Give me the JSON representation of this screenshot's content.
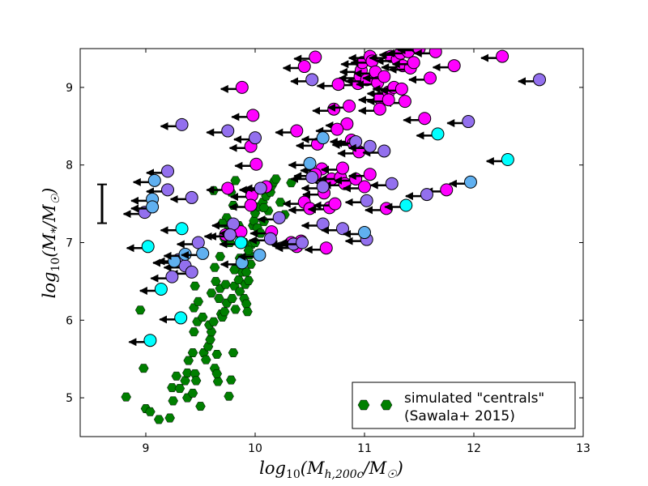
{
  "chart_data": {
    "type": "scatter",
    "title": "",
    "xlabel": "log10(Mh,200c / M☉)",
    "ylabel": "log10(M* / M☉)",
    "xlim": [
      8.4,
      13
    ],
    "ylim": [
      4.5,
      9.5
    ],
    "xticks": [
      9,
      10,
      11,
      12,
      13
    ],
    "yticks": [
      5,
      6,
      7,
      8,
      9
    ],
    "xtick_labels": [
      "9",
      "10",
      "11",
      "12",
      "13"
    ],
    "ytick_labels": [
      "5",
      "6",
      "7",
      "8",
      "9"
    ],
    "grid": false,
    "legend": {
      "location": "bottom-right",
      "entries": [
        {
          "label_line1": "simulated \"centrals\"",
          "label_line2": "(Sawala+ 2015)",
          "color": "#007f00",
          "marker": "hexagon"
        }
      ]
    },
    "error_bar": {
      "x": 8.6,
      "y_low": 7.25,
      "y_high": 7.75,
      "note": "typical stellar mass uncertainty"
    },
    "colors": {
      "magenta": "#ff00ff",
      "purple": "#9370ee",
      "blue": "#60b0f0",
      "cyan": "#00ffff",
      "green": "#007f00",
      "arrow": "#000000"
    },
    "series": [
      {
        "name": "simulated \"centrals\" (Sawala+ 2015)",
        "color": "#007f00",
        "marker": "hexagon",
        "points": [
          [
            8.82,
            5.01
          ],
          [
            8.95,
            6.13
          ],
          [
            8.98,
            5.38
          ],
          [
            9.0,
            4.86
          ],
          [
            9.04,
            4.82
          ],
          [
            9.12,
            4.72
          ],
          [
            9.22,
            4.74
          ],
          [
            9.25,
            4.96
          ],
          [
            9.24,
            5.13
          ],
          [
            9.28,
            5.28
          ],
          [
            9.31,
            5.12
          ],
          [
            9.36,
            5.22
          ],
          [
            9.38,
            5.32
          ],
          [
            9.39,
            5.48
          ],
          [
            9.38,
            5.0
          ],
          [
            9.43,
            5.06
          ],
          [
            9.45,
            5.31
          ],
          [
            9.46,
            5.22
          ],
          [
            9.43,
            5.58
          ],
          [
            9.44,
            5.85
          ],
          [
            9.47,
            5.98
          ],
          [
            9.44,
            6.16
          ],
          [
            9.48,
            6.24
          ],
          [
            9.45,
            6.44
          ],
          [
            9.5,
            4.89
          ],
          [
            9.52,
            6.04
          ],
          [
            9.53,
            5.58
          ],
          [
            9.55,
            5.49
          ],
          [
            9.57,
            5.66
          ],
          [
            9.59,
            5.75
          ],
          [
            9.6,
            5.85
          ],
          [
            9.58,
            5.94
          ],
          [
            9.62,
            5.98
          ],
          [
            9.6,
            6.35
          ],
          [
            9.63,
            5.38
          ],
          [
            9.65,
            5.56
          ],
          [
            9.66,
            5.21
          ],
          [
            9.65,
            5.31
          ],
          [
            9.67,
            6.28
          ],
          [
            9.68,
            6.41
          ],
          [
            9.69,
            6.08
          ],
          [
            9.7,
            6.04
          ],
          [
            9.72,
            6.11
          ],
          [
            9.74,
            6.22
          ],
          [
            9.73,
            6.46
          ],
          [
            9.76,
            5.02
          ],
          [
            9.78,
            5.23
          ],
          [
            9.8,
            5.58
          ],
          [
            9.79,
            6.28
          ],
          [
            9.81,
            6.44
          ],
          [
            9.82,
            6.14
          ],
          [
            9.85,
            6.52
          ],
          [
            9.86,
            6.37
          ],
          [
            9.88,
            6.62
          ],
          [
            9.9,
            6.28
          ],
          [
            9.91,
            6.46
          ],
          [
            9.92,
            6.21
          ],
          [
            9.93,
            6.11
          ],
          [
            9.94,
            6.51
          ],
          [
            9.95,
            6.84
          ],
          [
            9.96,
            6.72
          ],
          [
            9.97,
            6.98
          ],
          [
            9.98,
            7.22
          ],
          [
            9.99,
            7.28
          ],
          [
            10.0,
            7.38
          ],
          [
            10.02,
            7.19
          ],
          [
            10.04,
            7.46
          ],
          [
            10.05,
            7.12
          ],
          [
            10.07,
            7.52
          ],
          [
            10.08,
            7.27
          ],
          [
            10.1,
            7.6
          ],
          [
            10.12,
            7.41
          ],
          [
            10.14,
            7.65
          ],
          [
            10.15,
            7.73
          ],
          [
            10.17,
            7.78
          ],
          [
            10.19,
            7.82
          ],
          [
            10.23,
            7.52
          ],
          [
            10.27,
            7.36
          ],
          [
            10.33,
            7.77
          ],
          [
            9.82,
            7.8
          ],
          [
            9.78,
            7.65
          ],
          [
            9.62,
            7.67
          ],
          [
            9.8,
            7.48
          ],
          [
            9.74,
            7.32
          ],
          [
            9.7,
            7.25
          ],
          [
            9.72,
            7.05
          ],
          [
            9.68,
            6.82
          ],
          [
            9.63,
            6.68
          ],
          [
            9.85,
            7.22
          ],
          [
            9.9,
            7.0
          ],
          [
            10.0,
            7.0
          ],
          [
            10.08,
            7.45
          ],
          [
            9.94,
            6.9
          ],
          [
            9.86,
            7.1
          ],
          [
            9.77,
            7.0
          ],
          [
            9.75,
            7.15
          ],
          [
            9.86,
            6.8
          ],
          [
            9.81,
            6.65
          ],
          [
            9.92,
            6.62
          ],
          [
            9.64,
            6.5
          ]
        ]
      },
      {
        "name": "observed (magenta)",
        "color": "#ff00ff",
        "marker": "circle",
        "arrows": true,
        "points": [
          [
            9.88,
            9.0
          ],
          [
            9.98,
            8.64
          ],
          [
            9.96,
            8.24
          ],
          [
            10.01,
            8.01
          ],
          [
            9.97,
            7.61
          ],
          [
            9.96,
            7.48
          ],
          [
            9.75,
            7.7
          ],
          [
            9.73,
            7.1
          ],
          [
            9.87,
            7.14
          ],
          [
            10.1,
            7.72
          ],
          [
            10.15,
            7.14
          ],
          [
            10.38,
            8.44
          ],
          [
            10.33,
            7.0
          ],
          [
            10.38,
            6.95
          ],
          [
            10.42,
            7.02
          ],
          [
            10.45,
            7.52
          ],
          [
            10.5,
            7.44
          ],
          [
            10.57,
            8.27
          ],
          [
            10.61,
            7.95
          ],
          [
            10.63,
            7.64
          ],
          [
            10.65,
            6.93
          ],
          [
            10.68,
            7.45
          ],
          [
            10.55,
            7.88
          ],
          [
            10.7,
            7.82
          ],
          [
            10.72,
            8.72
          ],
          [
            10.73,
            7.5
          ],
          [
            10.78,
            7.84
          ],
          [
            10.8,
            7.96
          ],
          [
            10.82,
            7.76
          ],
          [
            10.84,
            8.53
          ],
          [
            10.86,
            8.76
          ],
          [
            10.75,
            8.46
          ],
          [
            10.88,
            8.32
          ],
          [
            10.9,
            8.28
          ],
          [
            10.92,
            7.82
          ],
          [
            10.94,
            9.05
          ],
          [
            10.96,
            9.14
          ],
          [
            10.97,
            9.22
          ],
          [
            10.98,
            9.32
          ],
          [
            11.0,
            7.72
          ],
          [
            11.02,
            9.1
          ],
          [
            11.05,
            9.4
          ],
          [
            11.07,
            9.34
          ],
          [
            11.1,
            9.2
          ],
          [
            11.12,
            9.06
          ],
          [
            11.14,
            8.86
          ],
          [
            11.18,
            9.14
          ],
          [
            11.2,
            7.44
          ],
          [
            11.22,
            8.94
          ],
          [
            11.24,
            9.4
          ],
          [
            11.27,
            9.0
          ],
          [
            11.3,
            9.36
          ],
          [
            11.33,
            9.44
          ],
          [
            11.35,
            9.28
          ],
          [
            11.37,
            8.82
          ],
          [
            11.4,
            9.46
          ],
          [
            11.42,
            9.25
          ],
          [
            11.45,
            9.32
          ],
          [
            11.48,
            9.52
          ],
          [
            11.5,
            9.5
          ],
          [
            11.55,
            8.6
          ],
          [
            11.6,
            9.12
          ],
          [
            11.65,
            9.46
          ],
          [
            11.75,
            7.68
          ],
          [
            11.82,
            9.28
          ],
          [
            12.26,
            9.4
          ],
          [
            10.55,
            9.39
          ],
          [
            10.45,
            9.27
          ],
          [
            10.76,
            9.04
          ],
          [
            11.14,
            8.72
          ],
          [
            10.95,
            8.17
          ],
          [
            11.05,
            7.88
          ],
          [
            11.22,
            8.84
          ],
          [
            11.34,
            8.98
          ]
        ]
      },
      {
        "name": "observed (purple)",
        "color": "#9370ee",
        "marker": "circle",
        "arrows": true,
        "points": [
          [
            9.33,
            8.52
          ],
          [
            9.2,
            7.92
          ],
          [
            9.2,
            7.68
          ],
          [
            9.42,
            7.58
          ],
          [
            8.99,
            7.39
          ],
          [
            9.75,
            8.44
          ],
          [
            10.0,
            8.35
          ],
          [
            10.05,
            7.7
          ],
          [
            9.8,
            7.24
          ],
          [
            9.77,
            7.1
          ],
          [
            9.48,
            7.0
          ],
          [
            9.3,
            6.78
          ],
          [
            9.36,
            6.7
          ],
          [
            9.42,
            6.62
          ],
          [
            9.24,
            6.56
          ],
          [
            10.14,
            7.05
          ],
          [
            10.22,
            7.32
          ],
          [
            10.35,
            6.98
          ],
          [
            10.43,
            7.0
          ],
          [
            10.52,
            7.84
          ],
          [
            10.62,
            7.24
          ],
          [
            10.8,
            7.18
          ],
          [
            11.02,
            7.04
          ],
          [
            11.02,
            7.54
          ],
          [
            11.18,
            8.18
          ],
          [
            11.25,
            7.76
          ],
          [
            11.57,
            7.62
          ],
          [
            11.95,
            8.56
          ],
          [
            12.6,
            9.1
          ],
          [
            10.52,
            9.1
          ],
          [
            10.92,
            8.3
          ],
          [
            11.05,
            8.24
          ],
          [
            10.62,
            7.72
          ]
        ]
      },
      {
        "name": "observed (blue)",
        "color": "#60b0f0",
        "marker": "circle",
        "arrows": true,
        "points": [
          [
            9.08,
            7.8
          ],
          [
            9.06,
            7.56
          ],
          [
            9.06,
            7.46
          ],
          [
            9.26,
            6.76
          ],
          [
            9.36,
            6.85
          ],
          [
            9.52,
            6.86
          ],
          [
            9.88,
            6.74
          ],
          [
            10.04,
            6.84
          ],
          [
            10.5,
            8.02
          ],
          [
            10.62,
            8.35
          ],
          [
            11.0,
            7.13
          ],
          [
            11.97,
            7.78
          ]
        ]
      },
      {
        "name": "observed (cyan)",
        "color": "#00ffff",
        "marker": "circle",
        "arrows": true,
        "points": [
          [
            9.02,
            6.95
          ],
          [
            9.33,
            7.18
          ],
          [
            9.14,
            6.4
          ],
          [
            9.32,
            6.03
          ],
          [
            9.04,
            5.74
          ],
          [
            9.87,
            7.0
          ],
          [
            11.38,
            7.48
          ],
          [
            11.67,
            8.4
          ],
          [
            12.31,
            8.07
          ]
        ]
      }
    ]
  }
}
